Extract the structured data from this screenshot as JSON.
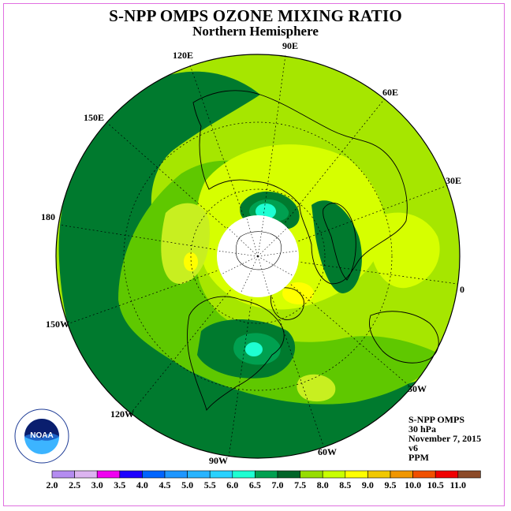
{
  "title": "S-NPP OMPS OZONE MIXING RATIO",
  "subtitle": "Northern Hemisphere",
  "longitude_labels": [
    "90E",
    "60E",
    "30E",
    "0",
    "30W",
    "60W",
    "90W",
    "120W",
    "150W",
    "180",
    "150E",
    "120E"
  ],
  "info": {
    "instrument": "S-NPP OMPS",
    "level": "30 hPa",
    "date": "November 7, 2015",
    "version": "v6",
    "units": "PPM"
  },
  "colorbar": {
    "labels": [
      "2.0",
      "2.5",
      "3.0",
      "3.5",
      "4.0",
      "4.5",
      "5.0",
      "5.5",
      "6.0",
      "6.5",
      "7.0",
      "7.5",
      "8.0",
      "8.5",
      "9.0",
      "9.5",
      "10.0",
      "10.5",
      "11.0"
    ],
    "colors": [
      "#b48cf0",
      "#dcb4f0",
      "#f000f0",
      "#1e00ff",
      "#0064ff",
      "#1e96ff",
      "#28b4ff",
      "#28d2ff",
      "#1effd2",
      "#00a050",
      "#006428",
      "#96dc00",
      "#c8ff00",
      "#ffff00",
      "#f0c800",
      "#f09600",
      "#f05000",
      "#f00000",
      "#8c4a28"
    ]
  },
  "logo": {
    "text": "NOAA"
  },
  "colors": {
    "ocean_dark": "#007a2e",
    "mid_green": "#5fc800",
    "light_green": "#a6e600",
    "yellow_green": "#d6ff00",
    "yellow": "#ffff00",
    "teal": "#00a050",
    "cyan": "#1effd2"
  }
}
